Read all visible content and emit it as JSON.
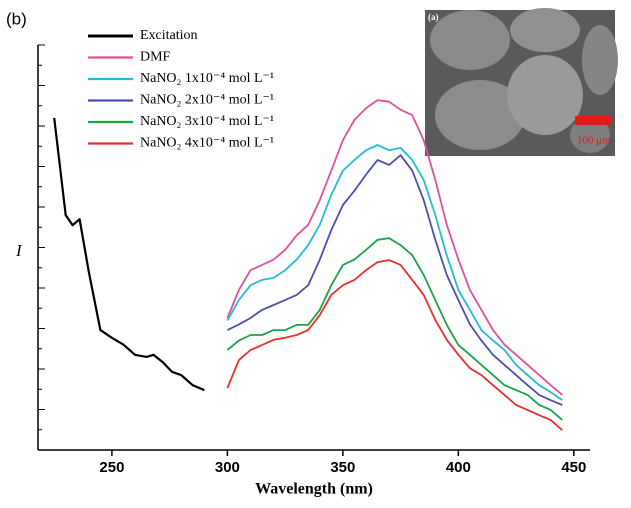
{
  "chart_data": {
    "type": "line",
    "panel_label": "(b)",
    "x_label": "Wavelength (nm)",
    "y_label": "I",
    "xlim": [
      218,
      457
    ],
    "xticks": [
      250,
      300,
      350,
      400,
      450
    ],
    "ylim": [
      0,
      100
    ],
    "yticks": [
      0,
      5,
      10,
      15,
      20,
      25,
      30,
      35,
      40,
      45,
      50,
      55,
      60,
      65,
      70,
      75,
      80,
      85,
      90,
      95,
      100
    ],
    "inset": {
      "label": "(a)",
      "scale_label": "100 μm"
    },
    "series": [
      {
        "name": "Excitation",
        "color": "#000000",
        "x": [
          225,
          230,
          233,
          236,
          240,
          245,
          250,
          255,
          260,
          265,
          268,
          272,
          276,
          280,
          285,
          290
        ],
        "values": [
          82,
          58,
          55.5,
          57,
          44,
          29.6,
          27.7,
          26,
          23.5,
          23,
          23.5,
          21.7,
          19.3,
          18.5,
          16,
          14.8
        ]
      },
      {
        "name": "DMF",
        "color": "#e0509f",
        "x": [
          300,
          305,
          310,
          315,
          320,
          325,
          330,
          335,
          340,
          345,
          350,
          355,
          360,
          365,
          370,
          375,
          380,
          385,
          390,
          395,
          400,
          405,
          410,
          415,
          420,
          425,
          430,
          435,
          440,
          445
        ],
        "values": [
          32.6,
          39.5,
          44.4,
          45.7,
          47,
          49.4,
          53,
          55.6,
          61.7,
          69,
          76.5,
          81.5,
          84.4,
          86.4,
          86,
          84,
          82.7,
          76.5,
          66.7,
          55.6,
          47,
          39.5,
          34.6,
          29.6,
          26,
          23.5,
          21,
          18.5,
          16,
          13.6
        ]
      },
      {
        "name": "NaNO₂ 1x10⁻⁴ mol L⁻¹",
        "color": "#22bcd6",
        "x": [
          300,
          305,
          310,
          315,
          320,
          325,
          330,
          335,
          340,
          345,
          350,
          355,
          360,
          365,
          370,
          375,
          380,
          385,
          390,
          395,
          400,
          405,
          410,
          415,
          420,
          425,
          430,
          435,
          440,
          445
        ],
        "values": [
          32,
          37,
          40.7,
          42,
          42.5,
          44.4,
          47,
          50.6,
          55.6,
          63,
          69,
          71.6,
          74,
          75.3,
          74,
          74.6,
          71.6,
          66.7,
          58,
          48,
          39.5,
          34.6,
          29.6,
          27,
          24.7,
          21,
          18.5,
          16,
          14.3,
          12.3
        ]
      },
      {
        "name": "NaNO₂ 2x10⁻⁴ mol L⁻¹",
        "color": "#4a4fb0",
        "x": [
          300,
          305,
          310,
          315,
          320,
          325,
          330,
          335,
          340,
          345,
          350,
          355,
          360,
          365,
          370,
          375,
          380,
          385,
          390,
          395,
          400,
          405,
          410,
          415,
          420,
          425,
          430,
          435,
          440,
          445
        ],
        "values": [
          29.6,
          31,
          32.6,
          34.6,
          35.8,
          37,
          38.3,
          40.7,
          47,
          54.3,
          60.5,
          64,
          68,
          71.6,
          70.4,
          72.8,
          69,
          61.7,
          51.9,
          43.2,
          37,
          31,
          27,
          23.5,
          21,
          18.5,
          16,
          13.6,
          12.3,
          11.1
        ]
      },
      {
        "name": "NaNO₂ 3x10⁻⁴ mol L⁻¹",
        "color": "#1aa34a",
        "x": [
          300,
          305,
          310,
          315,
          320,
          325,
          330,
          335,
          340,
          345,
          350,
          355,
          360,
          365,
          370,
          375,
          380,
          385,
          390,
          395,
          400,
          405,
          410,
          415,
          420,
          425,
          430,
          435,
          440,
          445
        ],
        "values": [
          24.7,
          27,
          28.4,
          28.4,
          29.6,
          29.6,
          30.9,
          30.9,
          34.6,
          40.7,
          45.7,
          47,
          49.4,
          51.9,
          52.3,
          50.6,
          48.1,
          43.2,
          37,
          30.9,
          25.9,
          23.5,
          21,
          18.5,
          16,
          14.8,
          13.6,
          11.1,
          9.9,
          7.4
        ]
      },
      {
        "name": "NaNO₂ 4x10⁻⁴ mol L⁻¹",
        "color": "#e8302a",
        "x": [
          300,
          305,
          310,
          315,
          320,
          325,
          330,
          335,
          340,
          345,
          350,
          355,
          360,
          365,
          370,
          375,
          380,
          385,
          390,
          395,
          400,
          405,
          410,
          415,
          420,
          425,
          430,
          435,
          440,
          445
        ],
        "values": [
          15.3,
          22.2,
          24.7,
          25.9,
          27.2,
          27.7,
          28.4,
          29.6,
          33.3,
          38.3,
          40.7,
          42,
          44.4,
          46.4,
          46.9,
          45.7,
          42,
          38.3,
          32.1,
          27.2,
          23.5,
          20.2,
          18.5,
          16,
          13.6,
          11.1,
          9.9,
          8.6,
          7.4,
          4.9
        ]
      }
    ]
  }
}
